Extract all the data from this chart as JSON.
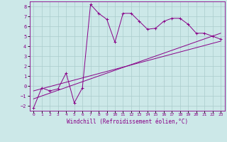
{
  "title": "",
  "xlabel": "Windchill (Refroidissement éolien,°C)",
  "bg_color": "#cce8e8",
  "grid_color": "#aacccc",
  "line_color": "#880088",
  "xlim": [
    -0.5,
    23.5
  ],
  "ylim": [
    -2.5,
    8.5
  ],
  "xticks": [
    0,
    1,
    2,
    3,
    4,
    5,
    6,
    7,
    8,
    9,
    10,
    11,
    12,
    13,
    14,
    15,
    16,
    17,
    18,
    19,
    20,
    21,
    22,
    23
  ],
  "yticks": [
    -2,
    -1,
    0,
    1,
    2,
    3,
    4,
    5,
    6,
    7,
    8
  ],
  "line1_x": [
    0,
    1,
    2,
    3,
    4,
    5,
    6,
    7,
    8,
    9,
    10,
    11,
    12,
    13,
    14,
    15,
    16,
    17,
    18,
    19,
    20,
    21,
    22,
    23
  ],
  "line1_y": [
    -2.2,
    -0.2,
    -0.5,
    -0.3,
    1.3,
    -1.7,
    -0.2,
    8.2,
    7.3,
    6.7,
    4.4,
    7.3,
    7.3,
    6.5,
    5.7,
    5.8,
    6.5,
    6.8,
    6.8,
    6.2,
    5.3,
    5.3,
    5.0,
    4.7
  ],
  "line2_x": [
    0,
    23
  ],
  "line2_y": [
    -0.5,
    4.5
  ],
  "line3_x": [
    0,
    23
  ],
  "line3_y": [
    -1.3,
    5.3
  ],
  "marker": "+"
}
